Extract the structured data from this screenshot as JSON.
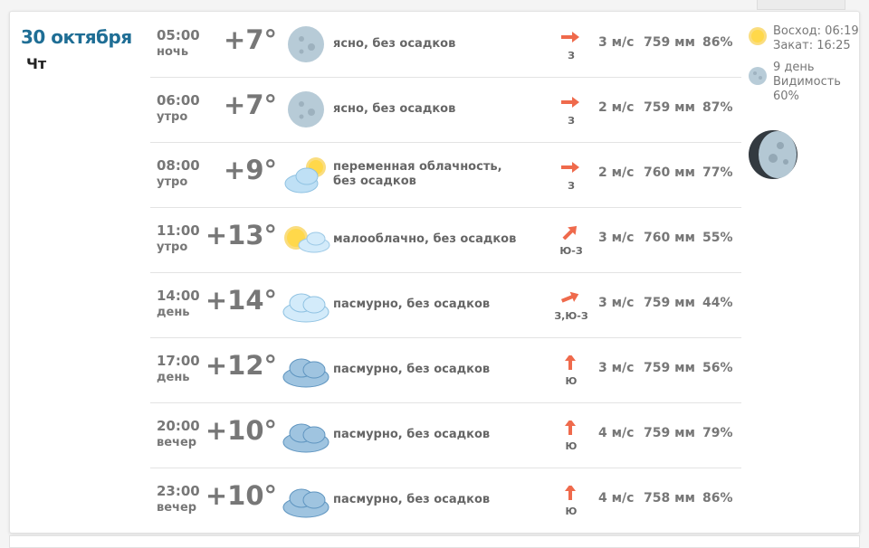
{
  "day": {
    "date": "30 октября",
    "weekday": "Чт"
  },
  "rows": [
    {
      "time": "05:00",
      "part": "ночь",
      "temp": "+7°",
      "icon": "moon-icon",
      "desc": "ясно, без осадков",
      "wind_dir": "З",
      "wind_angle": 0,
      "wind": "3 м/с",
      "pressure": "759 мм",
      "humidity": "86%"
    },
    {
      "time": "06:00",
      "part": "утро",
      "temp": "+7°",
      "icon": "moon-icon",
      "desc": "ясно, без осадков",
      "wind_dir": "З",
      "wind_angle": 0,
      "wind": "2 м/с",
      "pressure": "759 мм",
      "humidity": "87%"
    },
    {
      "time": "08:00",
      "part": "утро",
      "temp": "+9°",
      "icon": "cloud-sun-icon",
      "desc": "переменная облачность, без осадков",
      "wind_dir": "З",
      "wind_angle": 0,
      "wind": "2 м/с",
      "pressure": "760 мм",
      "humidity": "77%"
    },
    {
      "time": "11:00",
      "part": "утро",
      "temp": "+13°",
      "icon": "sun-cloud-icon",
      "desc": "малооблачно, без осадков",
      "wind_dir": "Ю-З",
      "wind_angle": -45,
      "wind": "3 м/с",
      "pressure": "760 мм",
      "humidity": "55%"
    },
    {
      "time": "14:00",
      "part": "день",
      "temp": "+14°",
      "icon": "cloud-icon",
      "desc": "пасмурно, без осадков",
      "wind_dir": "З,Ю-З",
      "wind_angle": -22,
      "wind": "3 м/с",
      "pressure": "759 мм",
      "humidity": "44%"
    },
    {
      "time": "17:00",
      "part": "день",
      "temp": "+12°",
      "icon": "overcast-icon",
      "desc": "пасмурно, без осадков",
      "wind_dir": "Ю",
      "wind_angle": -90,
      "wind": "3 м/с",
      "pressure": "759 мм",
      "humidity": "56%"
    },
    {
      "time": "20:00",
      "part": "вечер",
      "temp": "+10°",
      "icon": "overcast-icon",
      "desc": "пасмурно, без осадков",
      "wind_dir": "Ю",
      "wind_angle": -90,
      "wind": "4 м/с",
      "pressure": "759 мм",
      "humidity": "79%"
    },
    {
      "time": "23:00",
      "part": "вечер",
      "temp": "+10°",
      "icon": "overcast-icon",
      "desc": "пасмурно, без осадков",
      "wind_dir": "Ю",
      "wind_angle": -90,
      "wind": "4 м/с",
      "pressure": "758 мм",
      "humidity": "86%"
    }
  ],
  "side": {
    "sunrise": "Восход: 06:19",
    "sunset": "Закат: 16:25",
    "moon_day": "9 день",
    "visibility_label": "Видимость",
    "visibility": "60%"
  }
}
